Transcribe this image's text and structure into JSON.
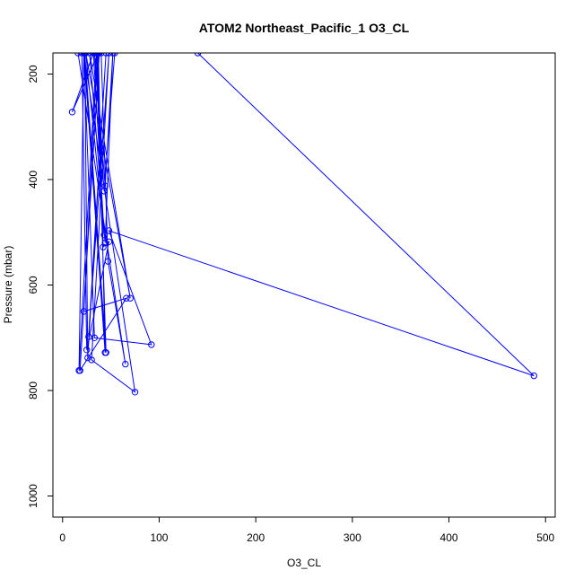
{
  "chart_data": {
    "type": "line",
    "title": "ATOM2 Northeast_Pacific_1 O3_CL",
    "xlabel": "O3_CL",
    "ylabel": "Pressure (mbar)",
    "xlim": [
      -10,
      510
    ],
    "ylim": [
      1040,
      160
    ],
    "y_reversed": true,
    "x_ticks": [
      0,
      100,
      200,
      300,
      400,
      500
    ],
    "y_ticks": [
      200,
      400,
      600,
      800,
      1000
    ],
    "grid": false,
    "line_color": "#0000ff",
    "marker": "open-circle",
    "series": [
      {
        "x": [
          140,
          488,
          48,
          92,
          33,
          22,
          17,
          35,
          45,
          23,
          26,
          45,
          27,
          48,
          30,
          75,
          22,
          44,
          37,
          10,
          32,
          43,
          24,
          70,
          28,
          44,
          52,
          44,
          33,
          43,
          54,
          16,
          65,
          47,
          40,
          20,
          25,
          48,
          42,
          36,
          22,
          66,
          18,
          38
        ],
        "y": [
          160,
          772,
          497,
          713,
          700,
          160,
          762,
          160,
          728,
          160,
          738,
          160,
          698,
          160,
          742,
          803,
          160,
          728,
          160,
          272,
          160,
          505,
          160,
          625,
          160,
          520,
          160,
          412,
          160,
          422,
          160,
          160,
          750,
          555,
          160,
          160,
          723,
          518,
          528,
          160,
          650,
          625,
          762,
          160
        ]
      }
    ]
  }
}
